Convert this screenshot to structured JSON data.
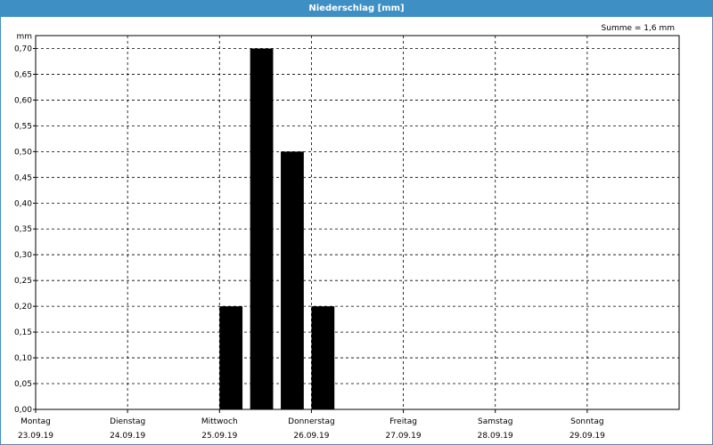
{
  "title": "Niederschlag [mm]",
  "summary": "Summe = 1,6 mm",
  "chart_data": {
    "type": "bar",
    "title": "Niederschlag [mm]",
    "ylabel": "mm",
    "ylim": [
      0,
      0.725
    ],
    "yticks": [
      0.0,
      0.05,
      0.1,
      0.15,
      0.2,
      0.25,
      0.3,
      0.35,
      0.4,
      0.45,
      0.5,
      0.55,
      0.6,
      0.65,
      0.7
    ],
    "ytick_labels": [
      "0,00",
      "0,05",
      "0,10",
      "0,15",
      "0,20",
      "0,25",
      "0,30",
      "0,35",
      "0,40",
      "0,45",
      "0,50",
      "0,55",
      "0,60",
      "0,65",
      "0,70"
    ],
    "x_range_days": [
      0,
      7
    ],
    "x_days": [
      {
        "weekday": "Montag",
        "date": "23.09.19"
      },
      {
        "weekday": "Dienstag",
        "date": "24.09.19"
      },
      {
        "weekday": "Mittwoch",
        "date": "25.09.19"
      },
      {
        "weekday": "Donnerstag",
        "date": "26.09.19"
      },
      {
        "weekday": "Freitag",
        "date": "27.09.19"
      },
      {
        "weekday": "Samstag",
        "date": "28.09.19"
      },
      {
        "weekday": "Sonntag",
        "date": "29.09.19"
      }
    ],
    "bars": [
      {
        "from": "25.09.19 00:00",
        "to": "25.09.19 06:00",
        "value": 0.2
      },
      {
        "from": "25.09.19 08:00",
        "to": "25.09.19 14:00",
        "value": 0.7
      },
      {
        "from": "25.09.19 16:00",
        "to": "25.09.19 22:00",
        "value": 0.5
      },
      {
        "from": "26.09.19 00:00",
        "to": "26.09.19 06:00",
        "value": 0.2
      }
    ],
    "grid": true,
    "bar_color": "#000000"
  }
}
